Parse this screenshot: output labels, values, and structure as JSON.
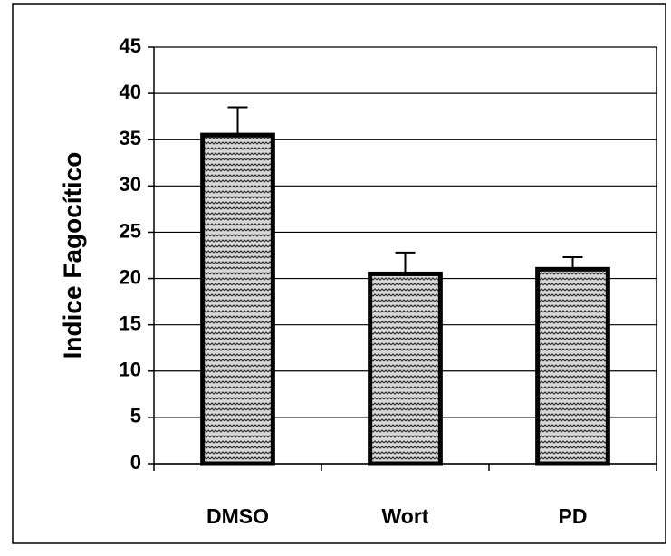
{
  "chart_data": {
    "type": "bar",
    "y_label": "Indice Fagocítico",
    "categories": [
      "DMSO",
      "Wort",
      "PD"
    ],
    "values": [
      35.5,
      20.5,
      21
    ],
    "errors": [
      3,
      2.3,
      1.3
    ],
    "color": "#9a9a9a",
    "ylim": [
      0,
      45
    ],
    "yticks": [
      0,
      5,
      10,
      15,
      20,
      25,
      30,
      35,
      40,
      45
    ],
    "grid": true
  }
}
